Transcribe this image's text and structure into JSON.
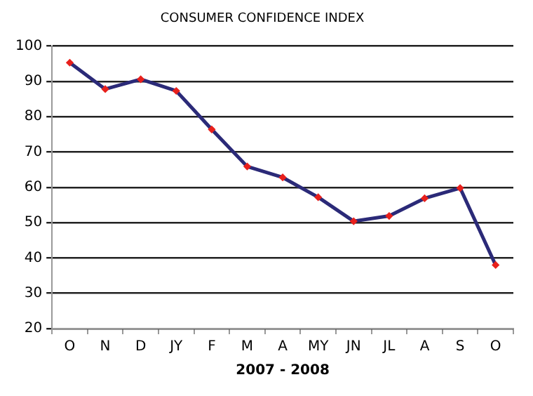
{
  "chart_data": {
    "type": "line",
    "title": "CONSUMER CONFIDENCE INDEX",
    "xlabel": "2007 - 2008",
    "categories": [
      "O",
      "N",
      "D",
      "JY",
      "F",
      "M",
      "A",
      "MY",
      "JN",
      "JL",
      "A",
      "S",
      "O"
    ],
    "series": [
      {
        "color": "#2b2a78",
        "values": [
          95.3,
          87.8,
          90.6,
          87.3,
          76.4,
          65.9,
          62.8,
          57.2,
          50.4,
          51.9,
          56.9,
          59.8,
          38.0
        ]
      }
    ],
    "ylim": [
      20,
      100
    ],
    "yticks": [
      20,
      30,
      40,
      50,
      60,
      70,
      80,
      90,
      100
    ],
    "grid": "y",
    "legend": false,
    "marker": "diamond",
    "line_style": "solid"
  }
}
